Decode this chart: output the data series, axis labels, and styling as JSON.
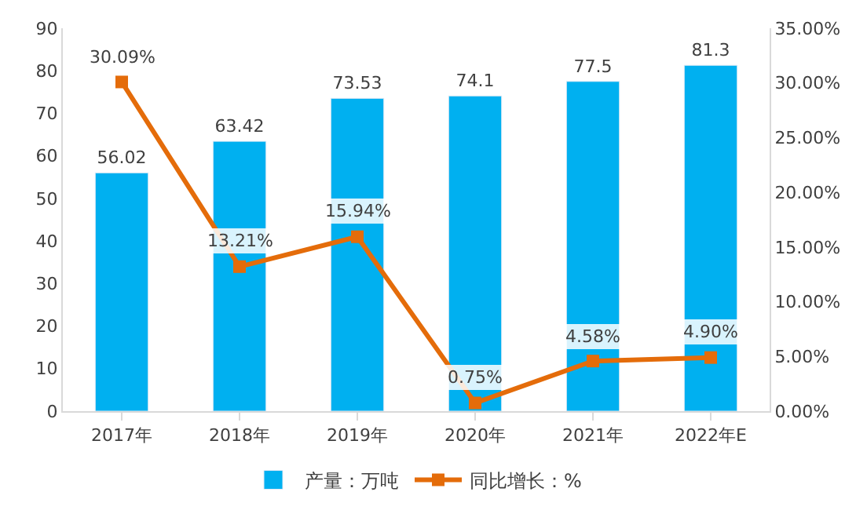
{
  "chart_data": {
    "type": "bar",
    "categories": [
      "2017年",
      "2018年",
      "2019年",
      "2020年",
      "2021年",
      "2022年E"
    ],
    "series": [
      {
        "name": "产量：万吨",
        "color": "#00b0f0",
        "values": [
          56.02,
          63.42,
          73.53,
          74.1,
          77.5,
          81.3
        ]
      },
      {
        "name": "同比增长：%",
        "type": "line",
        "axis": "y2",
        "color": "#e46c0a",
        "marker": "square",
        "values": [
          30.09,
          13.21,
          15.94,
          0.75,
          4.58,
          4.9
        ],
        "value_labels": [
          "30.09%",
          "13.21%",
          "15.94%",
          "0.75%",
          "4.58%",
          "4.90%"
        ]
      }
    ],
    "data_labels": true,
    "ylim": [
      0,
      90
    ],
    "yticks": [
      0,
      10,
      20,
      30,
      40,
      50,
      60,
      70,
      80,
      90
    ],
    "y2lim": [
      0,
      35
    ],
    "y2ticks": [
      {
        "value": 0,
        "label": "0.00%"
      },
      {
        "value": 5,
        "label": "5.00%"
      },
      {
        "value": 10,
        "label": "10.00%"
      },
      {
        "value": 15,
        "label": "15.00%"
      },
      {
        "value": 20,
        "label": "20.00%"
      },
      {
        "value": 25,
        "label": "25.00%"
      },
      {
        "value": 30,
        "label": "30.00%"
      },
      {
        "value": 35,
        "label": "35.00%"
      }
    ],
    "legend": "bottom"
  }
}
